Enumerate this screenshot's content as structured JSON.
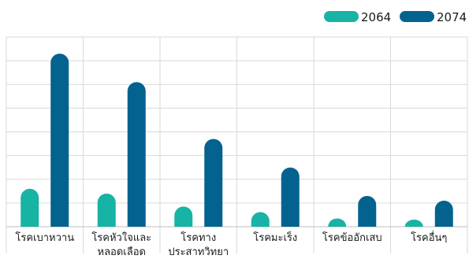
{
  "chart_data": {
    "type": "bar",
    "categories": [
      [
        "โรคเบาหวาน"
      ],
      [
        "โรคหัวใจและ",
        "หลอดเลือด"
      ],
      [
        "โรคทาง",
        "ประสาทวิทยา"
      ],
      [
        "โรคมะเร็ง"
      ],
      [
        "โรคข้ออักเสบ"
      ],
      [
        "โรคอื่นๆ"
      ]
    ],
    "series": [
      {
        "name": "2064",
        "color": "#17b3a5",
        "values": [
          1.6,
          1.4,
          0.85,
          0.62,
          0.35,
          0.3
        ]
      },
      {
        "name": "2074",
        "color": "#04628f",
        "values": [
          7.3,
          6.1,
          3.7,
          2.5,
          1.3,
          1.1
        ]
      }
    ],
    "ylim": [
      0,
      8
    ],
    "grid": true,
    "legend_position": "top-right"
  }
}
